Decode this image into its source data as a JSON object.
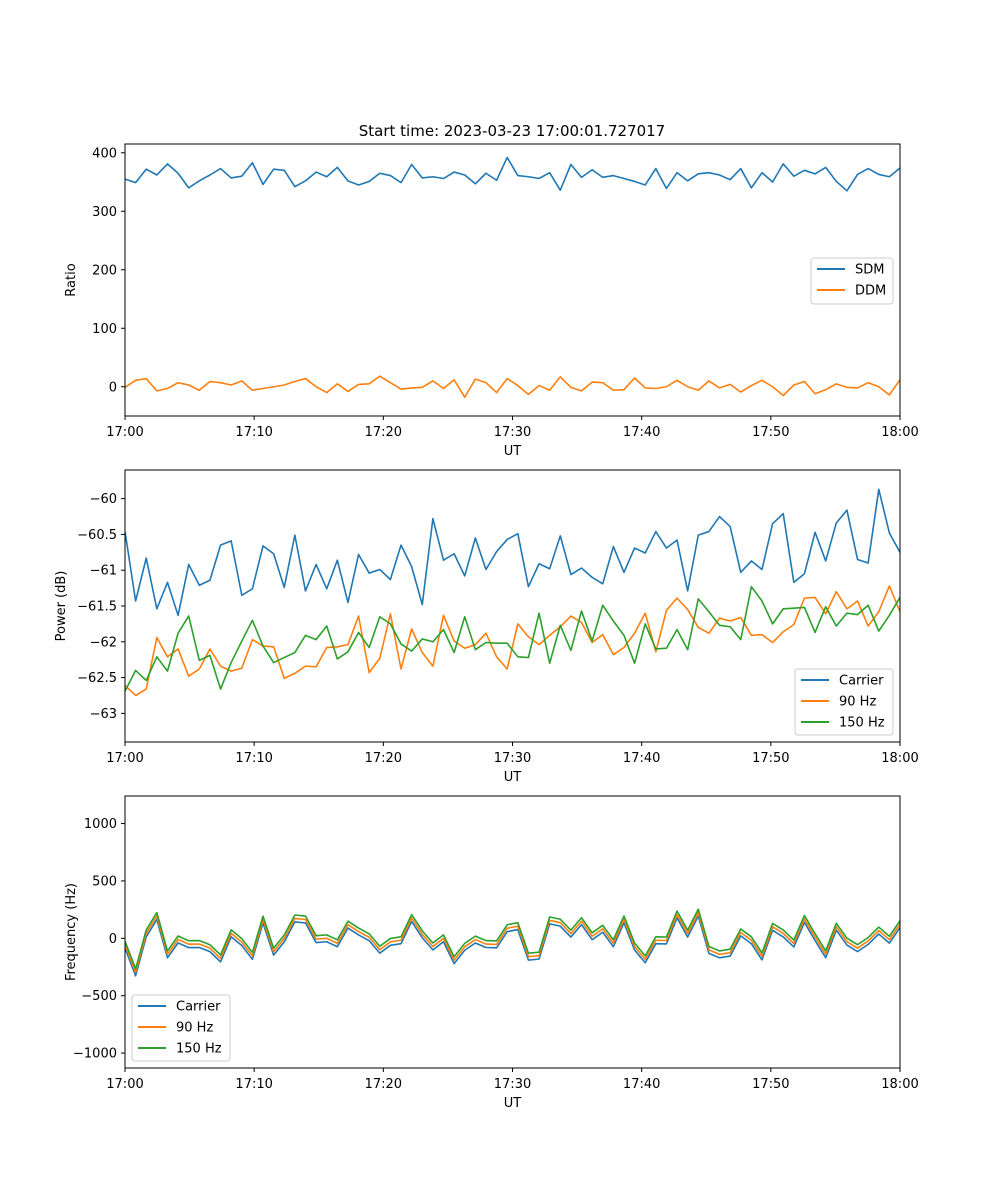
{
  "figure": {
    "title": "Start time: 2023-03-23 17:00:01.727017"
  },
  "colors": {
    "blue": "#1f77b4",
    "orange": "#ff7f0e",
    "green": "#2ca02c"
  },
  "chart_data": [
    {
      "type": "line",
      "title": "Start time: 2023-03-23 17:00:01.727017",
      "xlabel": "UT",
      "ylabel": "Ratio",
      "x_range": [
        "17:00",
        "18:00"
      ],
      "xticks": [
        "17:00",
        "17:10",
        "17:20",
        "17:30",
        "17:40",
        "17:50",
        "18:00"
      ],
      "ylim": [
        -50,
        415
      ],
      "yticks": [
        0,
        100,
        200,
        300,
        400
      ],
      "legend": "center-right",
      "grid": false,
      "series": [
        {
          "name": "SDM",
          "color": "#1f77b4",
          "mean": 358,
          "amplitude": 20,
          "values": [
            355,
            349,
            372,
            362,
            381,
            365,
            340,
            352,
            362,
            373,
            357,
            360,
            383,
            346,
            372,
            370,
            342,
            352,
            367,
            359,
            375,
            352,
            345,
            351,
            365,
            361,
            349,
            380,
            357,
            359,
            356,
            367,
            362,
            347,
            365,
            353,
            392,
            361,
            359,
            356,
            366,
            336,
            380,
            358,
            371,
            358,
            361,
            356,
            351,
            345,
            373,
            339,
            366,
            352,
            364,
            366,
            362,
            354,
            373,
            340,
            366,
            350,
            381,
            360,
            370,
            364,
            375,
            351,
            335,
            363,
            373,
            363,
            359,
            374
          ]
        },
        {
          "name": "DDM",
          "color": "#ff7f0e",
          "mean": 0,
          "amplitude": 12,
          "values": [
            -1,
            11,
            14,
            -7,
            -3,
            7,
            3,
            -6,
            9,
            7,
            3,
            10,
            -6,
            -3,
            0,
            3,
            9,
            14,
            0,
            -10,
            5,
            -8,
            4,
            5,
            18,
            7,
            -4,
            -2,
            -1,
            10,
            -3,
            12,
            -18,
            13,
            7,
            -10,
            14,
            2,
            -13,
            2,
            -6,
            17,
            -1,
            -7,
            8,
            7,
            -6,
            -5,
            15,
            -2,
            -3,
            0,
            11,
            0,
            -6,
            10,
            -2,
            4,
            -9,
            2,
            11,
            0,
            -15,
            3,
            9,
            -12,
            -5,
            5,
            -1,
            -2,
            7,
            0,
            -14,
            12
          ]
        }
      ]
    },
    {
      "type": "line",
      "title": "",
      "xlabel": "UT",
      "ylabel": "Power (dB)",
      "x_range": [
        "17:00",
        "18:00"
      ],
      "xticks": [
        "17:00",
        "17:10",
        "17:20",
        "17:30",
        "17:40",
        "17:50",
        "18:00"
      ],
      "ylim": [
        -63.4,
        -59.6
      ],
      "yticks": [
        -63.0,
        -62.5,
        -62.0,
        -61.5,
        -61.0,
        -60.5,
        -60.0
      ],
      "legend": "bottom-right",
      "grid": false,
      "series": [
        {
          "name": "Carrier",
          "color": "#1f77b4",
          "start": -61.2,
          "end": -60.55,
          "amplitude": 0.32,
          "values": [
            -60.46,
            -61.43,
            -60.83,
            -61.54,
            -61.17,
            -61.63,
            -60.92,
            -61.21,
            -61.14,
            -60.65,
            -60.59,
            -61.35,
            -61.26,
            -60.66,
            -60.77,
            -61.24,
            -60.51,
            -61.29,
            -60.92,
            -61.26,
            -60.86,
            -61.45,
            -60.78,
            -61.04,
            -60.99,
            -61.13,
            -60.65,
            -60.95,
            -61.48,
            -60.28,
            -60.86,
            -60.77,
            -61.08,
            -60.55,
            -60.99,
            -60.74,
            -60.57,
            -60.49,
            -61.23,
            -60.91,
            -60.98,
            -60.52,
            -61.06,
            -60.97,
            -61.1,
            -61.19,
            -60.67,
            -61.03,
            -60.69,
            -60.76,
            -60.46,
            -60.69,
            -60.58,
            -61.29,
            -60.51,
            -60.46,
            -60.25,
            -60.39,
            -61.03,
            -60.87,
            -60.99,
            -60.35,
            -60.21,
            -61.17,
            -61.05,
            -60.47,
            -60.87,
            -60.34,
            -60.16,
            -60.85,
            -60.9,
            -59.87,
            -60.48,
            -60.75
          ]
        },
        {
          "name": "90 Hz",
          "color": "#ff7f0e",
          "start": -62.3,
          "end": -61.55,
          "amplitude": 0.3,
          "values": [
            -62.61,
            -62.75,
            -62.66,
            -61.94,
            -62.21,
            -62.1,
            -62.48,
            -62.38,
            -62.1,
            -62.34,
            -62.41,
            -62.37,
            -61.97,
            -62.06,
            -62.07,
            -62.51,
            -62.44,
            -62.34,
            -62.35,
            -62.08,
            -62.07,
            -62.04,
            -61.64,
            -62.43,
            -62.23,
            -61.61,
            -62.38,
            -61.82,
            -62.15,
            -62.34,
            -61.63,
            -61.99,
            -62.09,
            -62.04,
            -61.88,
            -62.21,
            -62.38,
            -61.75,
            -61.93,
            -62.04,
            -61.91,
            -61.79,
            -61.64,
            -61.73,
            -62.01,
            -61.9,
            -62.18,
            -62.08,
            -61.88,
            -61.6,
            -62.14,
            -61.56,
            -61.39,
            -61.55,
            -61.8,
            -61.88,
            -61.67,
            -61.71,
            -61.66,
            -61.91,
            -61.9,
            -62.01,
            -61.86,
            -61.76,
            -61.39,
            -61.38,
            -61.61,
            -61.3,
            -61.54,
            -61.43,
            -61.78,
            -61.58,
            -61.22,
            -61.58
          ]
        },
        {
          "name": "150 Hz",
          "color": "#2ca02c",
          "start": -62.3,
          "end": -61.55,
          "amplitude": 0.33,
          "values": [
            -62.69,
            -62.4,
            -62.54,
            -62.21,
            -62.41,
            -61.88,
            -61.64,
            -62.26,
            -62.19,
            -62.66,
            -62.29,
            -61.99,
            -61.7,
            -62.06,
            -62.29,
            -62.22,
            -62.15,
            -61.91,
            -61.97,
            -61.78,
            -62.24,
            -62.14,
            -61.87,
            -62.08,
            -61.65,
            -61.75,
            -62.03,
            -62.13,
            -61.96,
            -62.0,
            -61.83,
            -62.15,
            -61.65,
            -62.11,
            -62.01,
            -62.02,
            -62.02,
            -62.21,
            -62.22,
            -61.6,
            -62.3,
            -61.77,
            -62.12,
            -61.57,
            -61.99,
            -61.49,
            -61.71,
            -61.91,
            -62.3,
            -61.75,
            -62.1,
            -62.09,
            -61.83,
            -62.11,
            -61.4,
            -61.58,
            -61.77,
            -61.79,
            -61.97,
            -61.23,
            -61.43,
            -61.75,
            -61.54,
            -61.53,
            -61.52,
            -61.87,
            -61.51,
            -61.78,
            -61.6,
            -61.62,
            -61.49,
            -61.85,
            -61.63,
            -61.38
          ]
        }
      ]
    },
    {
      "type": "line",
      "title": "",
      "xlabel": "UT",
      "ylabel": "Frequency (Hz)",
      "x_range": [
        "17:00",
        "18:00"
      ],
      "xticks": [
        "17:00",
        "17:10",
        "17:20",
        "17:30",
        "17:40",
        "17:50",
        "18:00"
      ],
      "ylim": [
        -1130,
        1240
      ],
      "yticks": [
        -1000,
        -500,
        0,
        500,
        1000
      ],
      "legend": "lower-left",
      "grid": false,
      "series": [
        {
          "name": "Carrier",
          "color": "#1f77b4",
          "mean": -60,
          "amplitude": 430,
          "values": [
            -85,
            -327,
            13,
            164,
            -170,
            -40,
            -81,
            -80,
            -116,
            -205,
            14,
            -63,
            -183,
            133,
            -147,
            -31,
            143,
            134,
            -37,
            -30,
            -73,
            89,
            29,
            -21,
            -129,
            -61,
            -47,
            147,
            5,
            -101,
            -30,
            -221,
            -104,
            -41,
            -80,
            -83,
            58,
            76,
            -190,
            -181,
            126,
            106,
            11,
            119,
            -12,
            53,
            -73,
            135,
            -102,
            -213,
            -47,
            -49,
            178,
            11,
            194,
            -131,
            -170,
            -155,
            21,
            -47,
            -188,
            70,
            12,
            -75,
            139,
            -20,
            -169,
            71,
            -59,
            -116,
            -53,
            38,
            -42,
            93
          ]
        },
        {
          "name": "90 Hz",
          "color": "#ff7f0e",
          "mean": -30,
          "amplitude": 430,
          "values": [
            -55,
            -297,
            43,
            194,
            -140,
            -10,
            -51,
            -50,
            -86,
            -175,
            44,
            -33,
            -153,
            163,
            -117,
            -1,
            173,
            164,
            -7,
            0,
            -43,
            119,
            59,
            9,
            -99,
            -31,
            -17,
            177,
            35,
            -71,
            0,
            -191,
            -74,
            -11,
            -50,
            -53,
            88,
            106,
            -160,
            -151,
            156,
            136,
            41,
            149,
            18,
            83,
            -43,
            165,
            -72,
            -183,
            -17,
            -19,
            208,
            41,
            224,
            -101,
            -140,
            -125,
            51,
            -17,
            -158,
            100,
            42,
            -45,
            169,
            10,
            -139,
            101,
            -29,
            -86,
            -23,
            68,
            -12,
            123
          ]
        },
        {
          "name": "150 Hz",
          "color": "#2ca02c",
          "mean": 0,
          "amplitude": 430,
          "values": [
            -25,
            -267,
            73,
            224,
            -110,
            20,
            -21,
            -20,
            -56,
            -145,
            74,
            -3,
            -123,
            193,
            -87,
            29,
            203,
            194,
            23,
            30,
            -13,
            149,
            89,
            39,
            -69,
            -1,
            13,
            207,
            65,
            -41,
            30,
            -161,
            -44,
            19,
            -20,
            -23,
            118,
            136,
            -130,
            -121,
            186,
            166,
            71,
            179,
            48,
            113,
            -13,
            195,
            -42,
            -153,
            13,
            11,
            238,
            71,
            254,
            -71,
            -110,
            -95,
            81,
            13,
            -128,
            130,
            72,
            -15,
            199,
            40,
            -109,
            131,
            1,
            -56,
            7,
            98,
            18,
            153
          ]
        }
      ]
    }
  ]
}
